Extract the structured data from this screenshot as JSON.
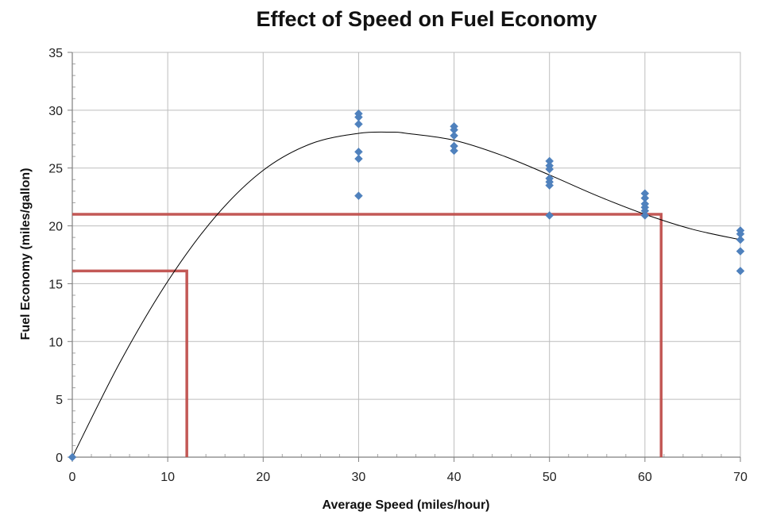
{
  "chart_data": {
    "type": "scatter",
    "title": "Effect of Speed on Fuel Economy",
    "xlabel": "Average Speed (miles/hour)",
    "ylabel": "Fuel Economy (miles/gallon)",
    "xlim": [
      0,
      70
    ],
    "ylim": [
      0,
      35
    ],
    "xticks": [
      0,
      10,
      20,
      30,
      40,
      50,
      60,
      70
    ],
    "yticks": [
      0,
      5,
      10,
      15,
      20,
      25,
      30,
      35
    ],
    "grid": true,
    "legend": "none",
    "series": [
      {
        "kind": "scatter",
        "marker": "diamond",
        "color": "#4F81BD",
        "points": [
          [
            0,
            0
          ],
          [
            30,
            29.7
          ],
          [
            30,
            29.4
          ],
          [
            30,
            28.8
          ],
          [
            30,
            26.4
          ],
          [
            30,
            25.8
          ],
          [
            30,
            22.6
          ],
          [
            40,
            28.6
          ],
          [
            40,
            28.3
          ],
          [
            40,
            27.8
          ],
          [
            40,
            26.9
          ],
          [
            40,
            26.5
          ],
          [
            50,
            25.6
          ],
          [
            50,
            25.2
          ],
          [
            50,
            24.9
          ],
          [
            50,
            24.1
          ],
          [
            50,
            23.8
          ],
          [
            50,
            23.5
          ],
          [
            50,
            20.9
          ],
          [
            60,
            22.8
          ],
          [
            60,
            22.4
          ],
          [
            60,
            21.9
          ],
          [
            60,
            21.6
          ],
          [
            60,
            21.3
          ],
          [
            60,
            20.9
          ],
          [
            70,
            19.6
          ],
          [
            70,
            19.3
          ],
          [
            70,
            18.8
          ],
          [
            70,
            17.8
          ],
          [
            70,
            16.1
          ]
        ]
      },
      {
        "kind": "trendline",
        "color": "#000000",
        "points": [
          [
            0,
            0
          ],
          [
            5,
            8.2
          ],
          [
            10,
            15.2
          ],
          [
            15,
            20.8
          ],
          [
            20,
            24.8
          ],
          [
            25,
            27.1
          ],
          [
            30,
            28.0
          ],
          [
            33.5,
            28.1
          ],
          [
            35,
            28.0
          ],
          [
            40,
            27.4
          ],
          [
            45,
            26.1
          ],
          [
            50,
            24.4
          ],
          [
            55,
            22.6
          ],
          [
            60,
            21.0
          ],
          [
            65,
            19.7
          ],
          [
            70,
            18.8
          ]
        ]
      },
      {
        "kind": "reference-line",
        "color": "#C0504D",
        "points": [
          [
            0,
            16.1
          ],
          [
            12,
            16.1
          ],
          [
            12,
            0
          ]
        ]
      },
      {
        "kind": "reference-line",
        "color": "#C0504D",
        "points": [
          [
            0,
            21.0
          ],
          [
            61.7,
            21.0
          ],
          [
            61.7,
            0
          ]
        ]
      }
    ]
  }
}
